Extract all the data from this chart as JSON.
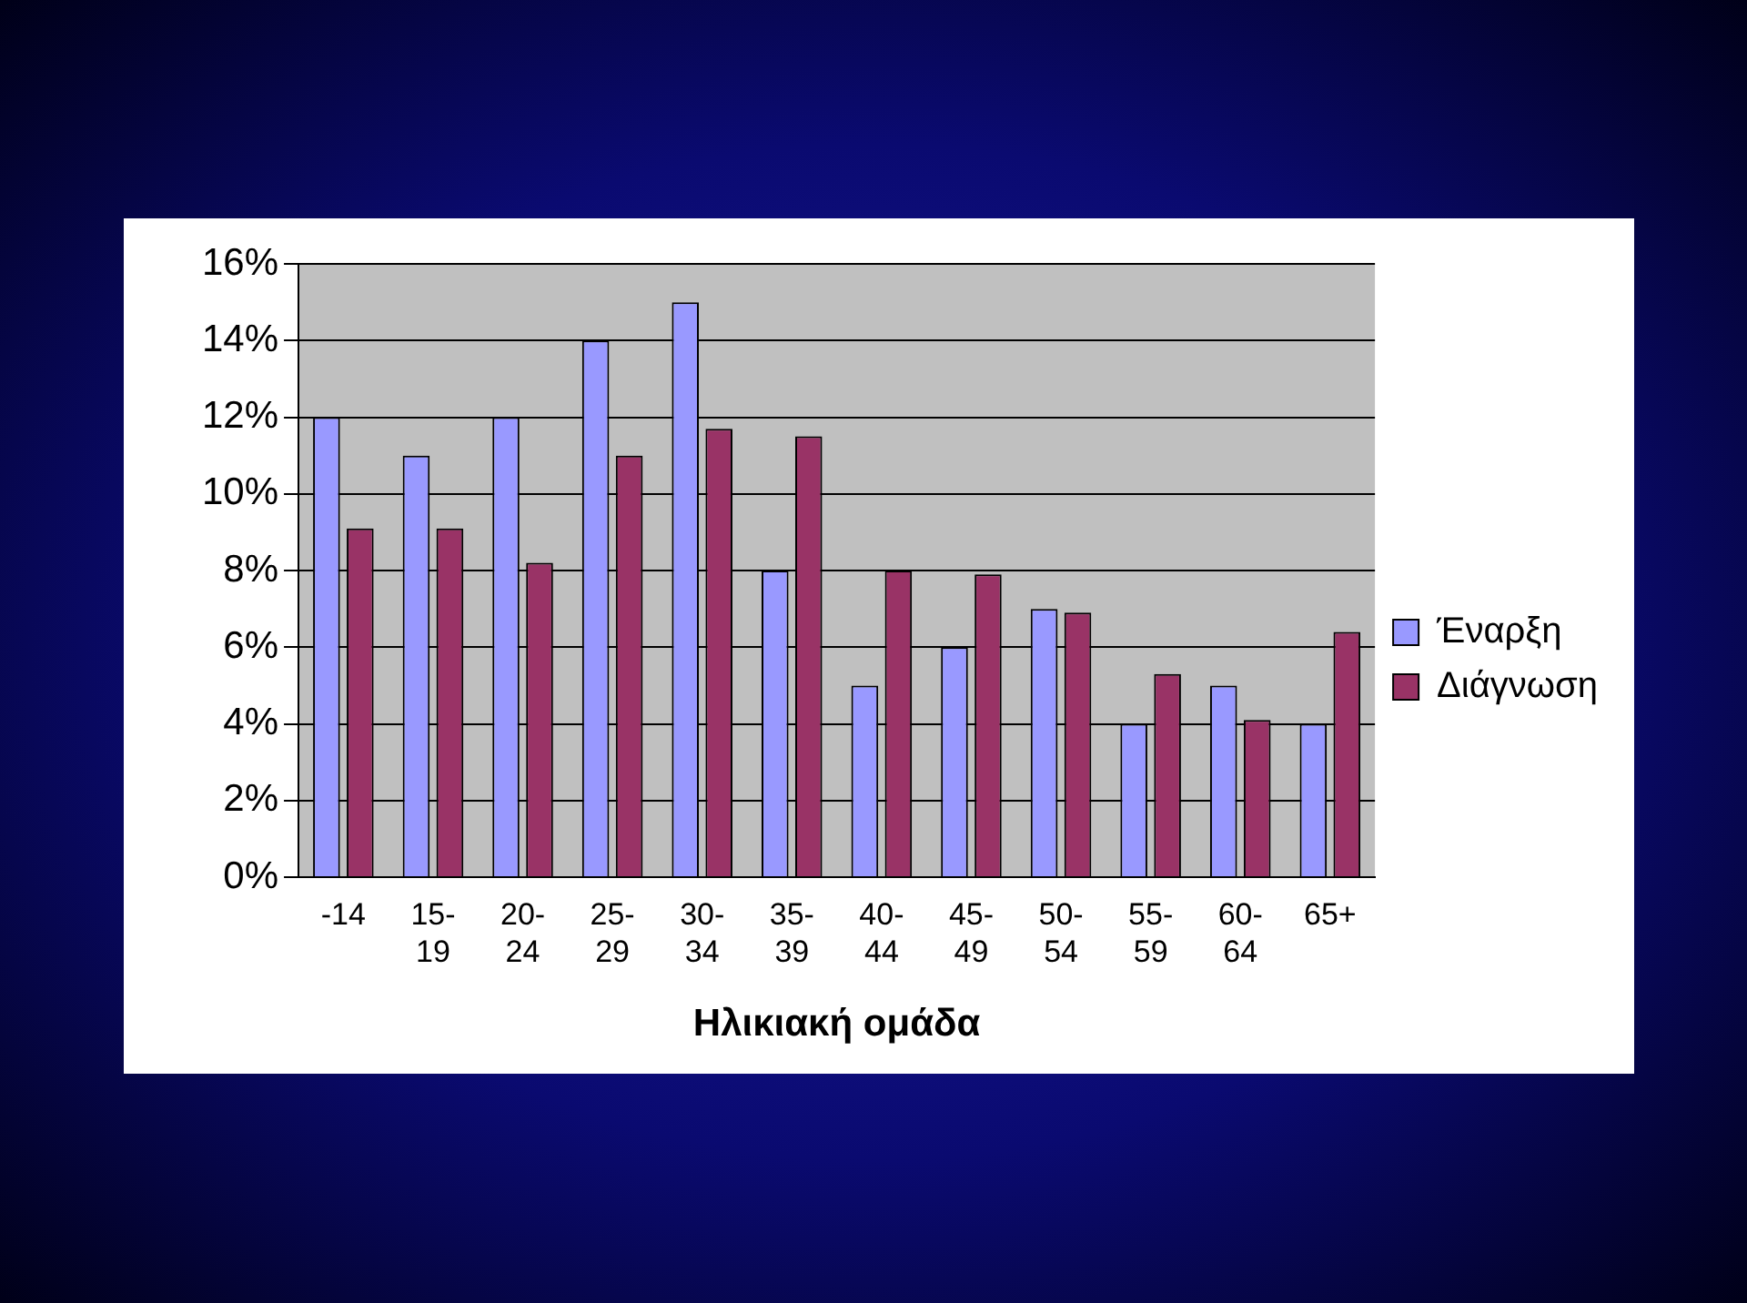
{
  "chart_data": {
    "type": "bar",
    "xlabel": "Ηλικιακή ομάδα",
    "categories": [
      "-14",
      "15-19",
      "20-24",
      "25-29",
      "30-34",
      "35-39",
      "40-44",
      "45-49",
      "50-54",
      "55-59",
      "60-64",
      "65+"
    ],
    "series": [
      {
        "name": "Έναρξη",
        "color": "#9999ff",
        "values": [
          12,
          11,
          12,
          14,
          15,
          8,
          5,
          6,
          7,
          4,
          5,
          4
        ]
      },
      {
        "name": "Διάγνωση",
        "color": "#993366",
        "values": [
          9.1,
          9.1,
          8.2,
          11,
          11.7,
          11.5,
          8,
          7.9,
          6.9,
          5.3,
          4.1,
          6.4
        ]
      }
    ],
    "ylim": [
      0,
      16
    ],
    "yticks": [
      {
        "value": 0,
        "label": "0%"
      },
      {
        "value": 2,
        "label": "2%"
      },
      {
        "value": 4,
        "label": "4%"
      },
      {
        "value": 6,
        "label": "6%"
      },
      {
        "value": 8,
        "label": "8%"
      },
      {
        "value": 10,
        "label": "10%"
      },
      {
        "value": 12,
        "label": "12%"
      },
      {
        "value": 14,
        "label": "14%"
      },
      {
        "value": 16,
        "label": "16%"
      }
    ],
    "grid": "y",
    "legend": "right"
  }
}
